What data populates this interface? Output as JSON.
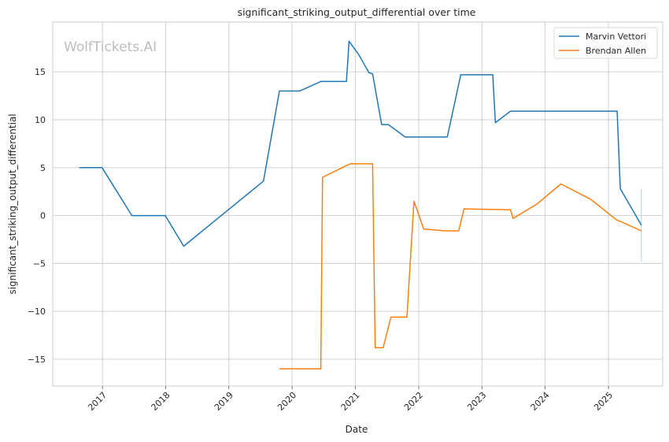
{
  "chart_data": {
    "type": "line",
    "title": "significant_striking_output_differential over time",
    "xlabel": "Date",
    "ylabel": "significant_striking_output_differential",
    "watermark": "WolfTickets.AI",
    "x_ticks": [
      "2017",
      "2018",
      "2019",
      "2020",
      "2021",
      "2022",
      "2023",
      "2024",
      "2025"
    ],
    "y_ticks": [
      -15,
      -10,
      -5,
      0,
      5,
      10,
      15
    ],
    "y_tick_labels": [
      "−15",
      "−10",
      "−5",
      "0",
      "5",
      "10",
      "15"
    ],
    "xlim": [
      "2016-03-20",
      "2025-11-10"
    ],
    "ylim": [
      -17.8,
      20.2
    ],
    "grid": true,
    "legend_position": "top-right",
    "series": [
      {
        "name": "Marvin Vettori",
        "color": "#1f77b4",
        "points": [
          [
            "2016-08-20",
            5.0
          ],
          [
            "2016-12-30",
            5.0
          ],
          [
            "2017-06-20",
            0.0
          ],
          [
            "2017-12-30",
            0.0
          ],
          [
            "2018-04-15",
            -3.2
          ],
          [
            "2019-07-20",
            3.6
          ],
          [
            "2019-10-20",
            13.0
          ],
          [
            "2020-02-15",
            13.0
          ],
          [
            "2020-06-15",
            14.0
          ],
          [
            "2020-11-10",
            14.0
          ],
          [
            "2020-11-25",
            18.2
          ],
          [
            "2021-01-20",
            16.8
          ],
          [
            "2021-03-20",
            14.9
          ],
          [
            "2021-04-10",
            14.8
          ],
          [
            "2021-06-01",
            9.5
          ],
          [
            "2021-07-10",
            9.5
          ],
          [
            "2021-10-15",
            8.2
          ],
          [
            "2022-06-15",
            8.2
          ],
          [
            "2022-09-01",
            14.7
          ],
          [
            "2023-03-05",
            14.7
          ],
          [
            "2023-03-20",
            9.7
          ],
          [
            "2023-06-15",
            10.9
          ],
          [
            "2025-02-20",
            10.9
          ],
          [
            "2025-03-10",
            2.8
          ],
          [
            "2025-07-10",
            -1.0
          ]
        ]
      },
      {
        "name": "Brendan Allen",
        "color": "#ff7f0e",
        "points": [
          [
            "2019-10-20",
            -16.0
          ],
          [
            "2020-06-15",
            -16.0
          ],
          [
            "2020-06-25",
            4.0
          ],
          [
            "2020-12-01",
            5.4
          ],
          [
            "2021-04-10",
            5.4
          ],
          [
            "2021-04-25",
            -13.8
          ],
          [
            "2021-06-10",
            -13.8
          ],
          [
            "2021-07-25",
            -10.6
          ],
          [
            "2021-10-25",
            -10.6
          ],
          [
            "2021-12-05",
            1.5
          ],
          [
            "2022-01-30",
            -1.4
          ],
          [
            "2022-06-01",
            -1.6
          ],
          [
            "2022-08-20",
            -1.6
          ],
          [
            "2022-09-20",
            0.7
          ],
          [
            "2023-06-15",
            0.6
          ],
          [
            "2023-06-30",
            -0.3
          ],
          [
            "2023-11-15",
            1.2
          ],
          [
            "2024-04-01",
            3.3
          ],
          [
            "2024-09-20",
            1.7
          ],
          [
            "2025-02-20",
            -0.5
          ],
          [
            "2025-03-10",
            -0.6
          ],
          [
            "2025-07-10",
            -1.6
          ]
        ]
      }
    ],
    "annotations": [
      {
        "type": "vertical-segment",
        "color": "#9ecae1",
        "x": "2025-07-10",
        "y_from": -4.8,
        "y_to": 2.8
      }
    ]
  }
}
